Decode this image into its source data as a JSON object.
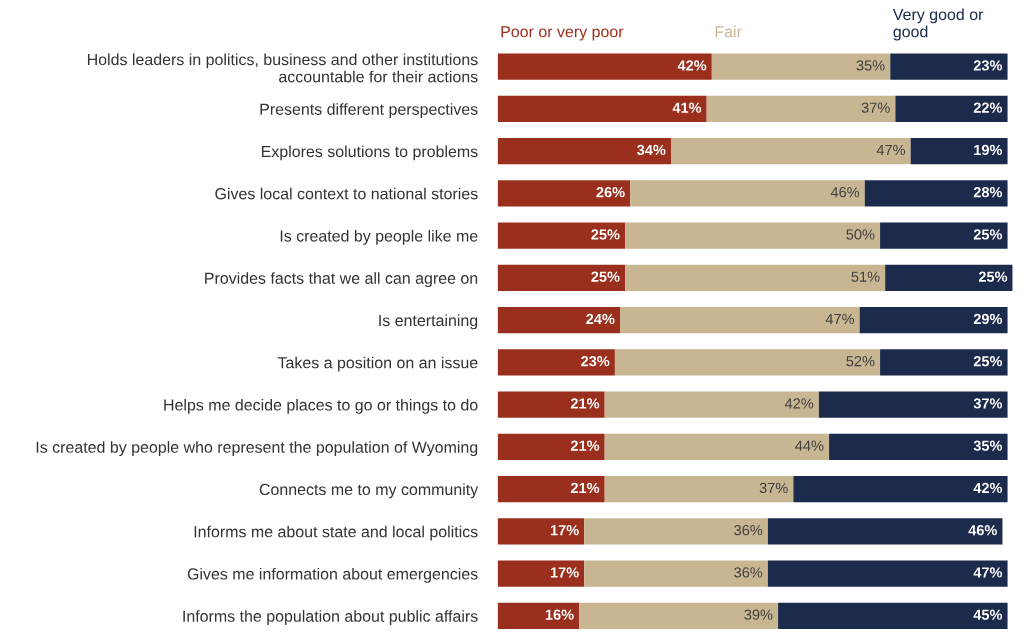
{
  "chart_data": {
    "type": "bar",
    "orientation": "horizontal",
    "stacked": true,
    "legend": "top",
    "grid": false,
    "tick_labels": "y",
    "categories": [
      "Holds leaders in politics, business and other institutions\naccountable for their actions",
      "Presents different perspectives",
      "Explores solutions to problems",
      "Gives local context to national stories",
      "Is created by people like me",
      "Provides facts that we all can agree on",
      "Is entertaining",
      "Takes a position on an issue",
      "Helps me decide places to go or things to do",
      "Is created by people who represent the population of Wyoming",
      "Connects me to my community",
      "Informs me about state and local politics",
      "Gives me information about emergencies",
      "Informs the population about public affairs"
    ],
    "series": [
      {
        "name": "Poor or very poor",
        "color": "#9b2f1d",
        "values": [
          42,
          41,
          34,
          26,
          25,
          25,
          24,
          23,
          21,
          21,
          21,
          17,
          17,
          16
        ],
        "value_labels": [
          "42%",
          "41%",
          "34%",
          "26%",
          "25%",
          "25%",
          "24%",
          "23%",
          "21%",
          "21%",
          "21%",
          "17%",
          "17%",
          "16%"
        ]
      },
      {
        "name": "Fair",
        "color": "#c8b592",
        "values": [
          35,
          37,
          47,
          46,
          50,
          51,
          47,
          52,
          42,
          44,
          37,
          36,
          36,
          39
        ],
        "value_labels": [
          "35%",
          "37%",
          "47%",
          "46%",
          "50%",
          "51%",
          "47%",
          "52%",
          "42%",
          "44%",
          "37%",
          "36%",
          "36%",
          "39%"
        ]
      },
      {
        "name": "Very good or\ngood",
        "color": "#1c2b4b",
        "values": [
          23,
          22,
          19,
          28,
          25,
          25,
          29,
          25,
          37,
          35,
          42,
          46,
          47,
          45
        ],
        "value_labels": [
          "23%",
          "22%",
          "19%",
          "28%",
          "25%",
          "25%",
          "29%",
          "25%",
          "37%",
          "35%",
          "42%",
          "46%",
          "47%",
          "45%"
        ]
      }
    ]
  }
}
